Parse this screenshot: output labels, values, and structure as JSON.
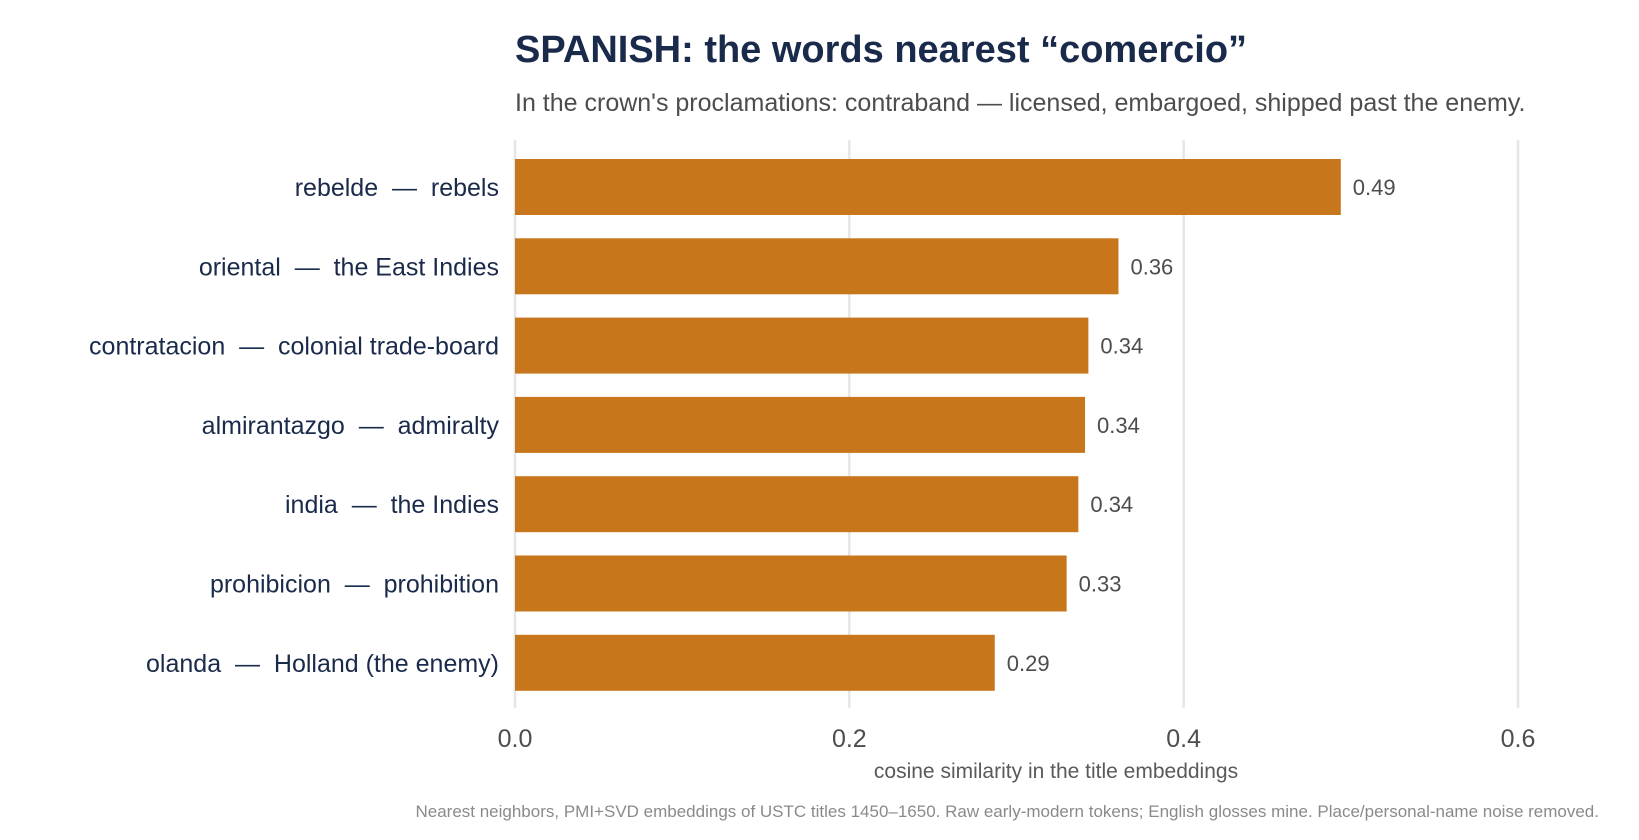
{
  "chart_data": {
    "type": "bar",
    "orientation": "horizontal",
    "title": "SPANISH: the words nearest “comercio”",
    "subtitle": "In the crown's proclamations: contraband — licensed, embargoed, shipped past the enemy.",
    "categories": [
      "rebelde  —  rebels",
      "oriental  —  the East Indies",
      "contratacion  —  colonial trade-board",
      "almirantazgo  —  admiralty",
      "india  —  the Indies",
      "prohibicion  —  prohibition",
      "olanda  —  Holland (the enemy)"
    ],
    "values": [
      0.494,
      0.361,
      0.343,
      0.341,
      0.337,
      0.33,
      0.287
    ],
    "value_labels": [
      "0.49",
      "0.36",
      "0.34",
      "0.34",
      "0.34",
      "0.33",
      "0.29"
    ],
    "xlabel": "cosine similarity in the title embeddings",
    "ylabel": "",
    "xlim": [
      0,
      0.65
    ],
    "xticks": [
      0,
      0.2,
      0.4,
      0.6
    ],
    "xtick_labels": [
      "0.0",
      "0.2",
      "0.4",
      "0.6"
    ],
    "grid": "vertical",
    "caption": "Nearest neighbors, PMI+SVD embeddings of USTC titles 1450–1650. Raw early-modern tokens; English glosses mine. Place/personal-name noise removed.",
    "colors": {
      "bar": "#c8761b",
      "title": "#1a2a4a",
      "subtitle": "#4d4d4d",
      "category_label": "#1a2a4a",
      "value_label": "#4d4d4d",
      "tick_label": "#4d4d4d",
      "axis_title": "#5a5a5a",
      "caption": "#8a8a8a",
      "grid": "#e6e6e6"
    }
  }
}
